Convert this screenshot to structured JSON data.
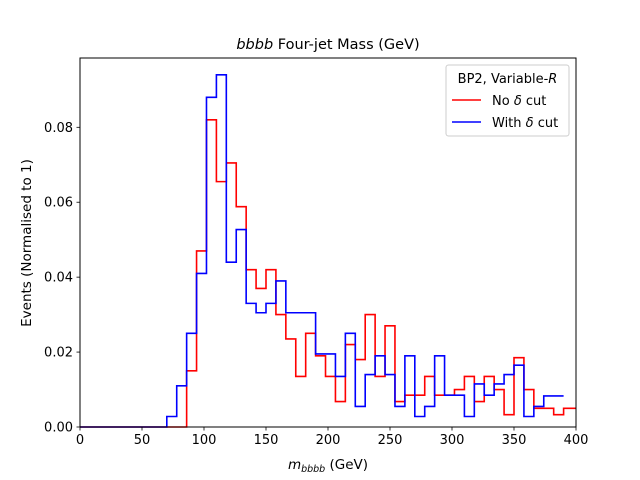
{
  "chart_data": {
    "type": "line",
    "drawstyle": "steps",
    "title_italic": "bbbb",
    "title_rest": " Four-jet Mass (GeV)",
    "xlabel_italic": "m",
    "xlabel_sub": "bbbb",
    "xlabel_rest": " (GeV)",
    "ylabel": "Events (Normalised to 1)",
    "xlim": [
      0,
      400
    ],
    "ylim": [
      0,
      0.0985
    ],
    "xticks": [
      0,
      50,
      100,
      150,
      200,
      250,
      300,
      350,
      400
    ],
    "xtick_labels": [
      "0",
      "50",
      "100",
      "150",
      "200",
      "250",
      "300",
      "350",
      "400"
    ],
    "yticks": [
      0.0,
      0.02,
      0.04,
      0.06,
      0.08
    ],
    "ytick_labels": [
      "0.00",
      "0.02",
      "0.04",
      "0.06",
      "0.08"
    ],
    "legend": {
      "title": "BP2, Variable-",
      "title_italic": "R",
      "placement": "top-right",
      "entries": [
        {
          "prefix": "No ",
          "symbol": "δ",
          "suffix": " cut"
        },
        {
          "prefix": "With ",
          "symbol": "δ",
          "suffix": " cut"
        }
      ]
    },
    "series": [
      {
        "name": "No δ cut",
        "color": "#ff0000",
        "edges": [
          0,
          70,
          78,
          86,
          94,
          102,
          110,
          118,
          126,
          134,
          142,
          150,
          158,
          166,
          174,
          182,
          190,
          198,
          206,
          214,
          222,
          230,
          238,
          246,
          254,
          262,
          270,
          278,
          286,
          294,
          302,
          310,
          318,
          326,
          334,
          342,
          350,
          358,
          366,
          374,
          382,
          390,
          400
        ],
        "values": [
          0,
          0,
          0,
          0.015,
          0.047,
          0.082,
          0.0655,
          0.0705,
          0.0588,
          0.042,
          0.037,
          0.042,
          0.03,
          0.0235,
          0.0135,
          0.025,
          0.019,
          0.0135,
          0.0068,
          0.022,
          0.018,
          0.03,
          0.0135,
          0.027,
          0.0068,
          0.0085,
          0.0085,
          0.0135,
          0.0085,
          0.0085,
          0.01,
          0.0135,
          0.0068,
          0.0135,
          0.01,
          0.0033,
          0.0185,
          0.01,
          0.005,
          0.005,
          0.0033,
          0.005
        ]
      },
      {
        "name": "With δ cut",
        "color": "#0000ff",
        "edges": [
          0,
          70,
          78,
          86,
          94,
          102,
          110,
          118,
          126,
          134,
          142,
          150,
          158,
          166,
          190,
          198,
          206,
          214,
          222,
          230,
          238,
          246,
          254,
          262,
          270,
          278,
          286,
          294,
          302,
          310,
          318,
          326,
          334,
          342,
          350,
          358,
          366,
          374,
          390
        ],
        "values": [
          0,
          0.0028,
          0.011,
          0.025,
          0.041,
          0.088,
          0.094,
          0.044,
          0.0527,
          0.033,
          0.0305,
          0.033,
          0.039,
          0.0305,
          0.0195,
          0.0195,
          0.0135,
          0.025,
          0.0055,
          0.014,
          0.019,
          0.014,
          0.0055,
          0.019,
          0.0028,
          0.0055,
          0.019,
          0.0085,
          0.0085,
          0.0028,
          0.0115,
          0.0085,
          0.0115,
          0.014,
          0.0165,
          0.0028,
          0.0055,
          0.0083
        ]
      }
    ]
  }
}
